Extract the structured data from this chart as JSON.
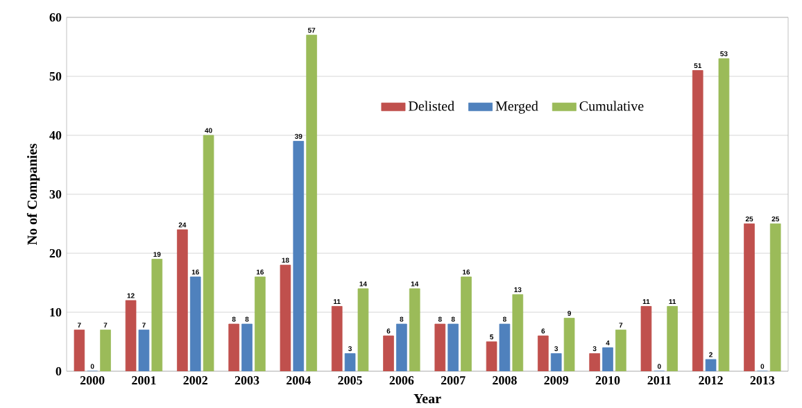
{
  "chart_data": {
    "type": "bar",
    "xlabel": "Year",
    "ylabel": "No of Companies",
    "categories": [
      "2000",
      "2001",
      "2002",
      "2003",
      "2004",
      "2005",
      "2006",
      "2007",
      "2008",
      "2009",
      "2010",
      "2011",
      "2012",
      "2013"
    ],
    "series": [
      {
        "name": "Delisted",
        "color": "#c0504d",
        "values": [
          7,
          12,
          24,
          8,
          18,
          11,
          6,
          8,
          5,
          6,
          3,
          11,
          51,
          25
        ]
      },
      {
        "name": "Merged",
        "color": "#4f81bd",
        "values": [
          0,
          7,
          16,
          8,
          39,
          3,
          8,
          8,
          8,
          3,
          4,
          0,
          2,
          0
        ]
      },
      {
        "name": "Cumulative",
        "color": "#9bbb59",
        "values": [
          7,
          19,
          40,
          16,
          57,
          14,
          14,
          16,
          13,
          9,
          7,
          11,
          53,
          25
        ]
      }
    ],
    "ylim": [
      0,
      60
    ],
    "yticks": [
      0,
      10,
      20,
      30,
      40,
      50,
      60
    ],
    "grid": "y",
    "legend": "top",
    "data_labels": true
  }
}
